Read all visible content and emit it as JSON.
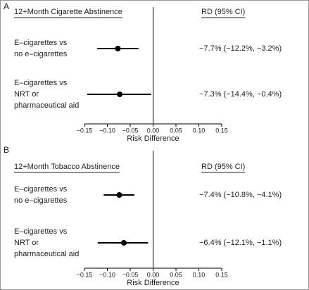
{
  "chart_data": [
    {
      "type": "forest",
      "panel": "A",
      "title": "12+Month Cigarette Abstinence",
      "value_header": "RD (95% CI)",
      "categories": [
        [
          "E–cigarettes vs",
          "no e–cigarettes"
        ],
        [
          "E–cigarettes vs",
          "NRT or",
          "pharmaceutical aid"
        ]
      ],
      "values": [
        -0.077,
        -0.073
      ],
      "ci_low": [
        -0.122,
        -0.144
      ],
      "ci_high": [
        -0.032,
        -0.004
      ],
      "value_labels": [
        "−7.7% (−12.2%, −3.2%)",
        "−7.3% (−14.4%, −0.4%)"
      ],
      "xlabel": "Risk Difference",
      "xlim": [
        -0.15,
        0.15
      ],
      "xticks": [
        {
          "value": -0.15,
          "label": "−0.15"
        },
        {
          "value": -0.1,
          "label": "−0.10"
        },
        {
          "value": -0.05,
          "label": "−0.05"
        },
        {
          "value": 0,
          "label": "0.00"
        },
        {
          "value": 0.05,
          "label": "0.05"
        },
        {
          "value": 0.1,
          "label": "0.10"
        },
        {
          "value": 0.15,
          "label": "0.15"
        }
      ],
      "color": "#000000"
    },
    {
      "type": "forest",
      "panel": "B",
      "title": "12+Month Tobacco Abstinence",
      "value_header": "RD (95% CI)",
      "categories": [
        [
          "E–cigarettes vs",
          "no e–cigarettes"
        ],
        [
          "E–cigarettes vs",
          "NRT or",
          "pharmaceutical aid"
        ]
      ],
      "values": [
        -0.074,
        -0.064
      ],
      "ci_low": [
        -0.108,
        -0.121
      ],
      "ci_high": [
        -0.041,
        -0.011
      ],
      "value_labels": [
        "−7.4% (−10.8%, −4.1%)",
        "−6.4% (−12.1%, −1.1%)"
      ],
      "xlabel": "Risk Difference",
      "xlim": [
        -0.15,
        0.15
      ],
      "xticks": [
        {
          "value": -0.15,
          "label": "−0.15"
        },
        {
          "value": -0.1,
          "label": "−0.10"
        },
        {
          "value": -0.05,
          "label": "−0.05"
        },
        {
          "value": 0,
          "label": "0.00"
        },
        {
          "value": 0.05,
          "label": "0.05"
        },
        {
          "value": 0.1,
          "label": "0.10"
        },
        {
          "value": 0.15,
          "label": "0.15"
        }
      ],
      "color": "#000000"
    }
  ]
}
